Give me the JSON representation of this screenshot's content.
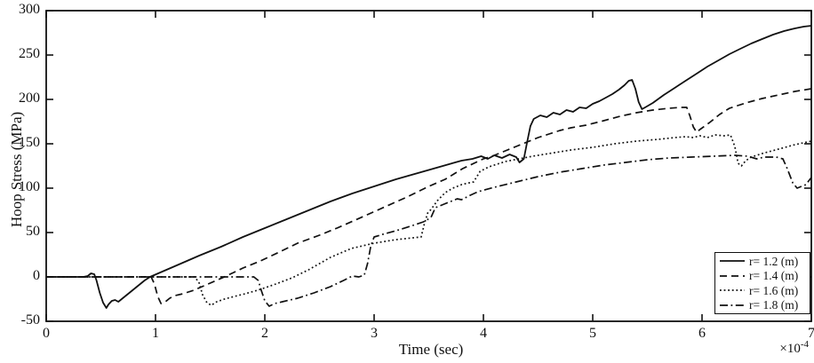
{
  "figure": {
    "background": "#ffffff",
    "line_color": "#111111"
  },
  "chart_data": {
    "type": "line",
    "title": "",
    "xlabel": "Time (sec)",
    "xlabel_multiplier": {
      "base": "×10",
      "exp": "-4"
    },
    "ylabel": "Hoop Stress (MPa)",
    "xlim": [
      0,
      7
    ],
    "ylim": [
      -50,
      300
    ],
    "xticks": [
      0,
      1,
      2,
      3,
      4,
      5,
      6,
      7
    ],
    "yticks": [
      -50,
      0,
      50,
      100,
      150,
      200,
      250,
      300
    ],
    "x_units_note": "time axis in units of 1e-4 seconds",
    "grid": false,
    "legend_position": "south-east-inside",
    "series": [
      {
        "key": "r12",
        "label": "r= 1.2 (m)",
        "style": "solid",
        "points": [
          [
            0,
            0
          ],
          [
            0.2,
            0
          ],
          [
            0.34,
            0
          ],
          [
            0.38,
            1
          ],
          [
            0.41,
            4
          ],
          [
            0.44,
            3
          ],
          [
            0.46,
            -4
          ],
          [
            0.49,
            -18
          ],
          [
            0.52,
            -29
          ],
          [
            0.55,
            -35
          ],
          [
            0.57,
            -31
          ],
          [
            0.6,
            -27
          ],
          [
            0.63,
            -26
          ],
          [
            0.66,
            -28
          ],
          [
            0.7,
            -24
          ],
          [
            0.76,
            -18
          ],
          [
            0.83,
            -11
          ],
          [
            0.9,
            -4
          ],
          [
            0.95,
            0
          ],
          [
            1.1,
            8
          ],
          [
            1.25,
            16
          ],
          [
            1.4,
            24
          ],
          [
            1.6,
            34
          ],
          [
            1.8,
            45
          ],
          [
            2.0,
            55
          ],
          [
            2.2,
            65
          ],
          [
            2.4,
            75
          ],
          [
            2.6,
            85
          ],
          [
            2.8,
            94
          ],
          [
            3.0,
            102
          ],
          [
            3.2,
            110
          ],
          [
            3.4,
            117
          ],
          [
            3.6,
            124
          ],
          [
            3.8,
            131
          ],
          [
            3.9,
            133
          ],
          [
            3.98,
            136
          ],
          [
            4.04,
            133
          ],
          [
            4.1,
            137
          ],
          [
            4.17,
            134
          ],
          [
            4.24,
            138
          ],
          [
            4.3,
            135
          ],
          [
            4.33,
            129
          ],
          [
            4.37,
            133
          ],
          [
            4.4,
            152
          ],
          [
            4.43,
            170
          ],
          [
            4.46,
            178
          ],
          [
            4.52,
            182
          ],
          [
            4.58,
            180
          ],
          [
            4.64,
            185
          ],
          [
            4.7,
            183
          ],
          [
            4.76,
            188
          ],
          [
            4.82,
            186
          ],
          [
            4.88,
            191
          ],
          [
            4.94,
            190
          ],
          [
            5.0,
            195
          ],
          [
            5.06,
            198
          ],
          [
            5.12,
            202
          ],
          [
            5.18,
            206
          ],
          [
            5.24,
            211
          ],
          [
            5.29,
            216
          ],
          [
            5.33,
            221
          ],
          [
            5.36,
            222
          ],
          [
            5.39,
            212
          ],
          [
            5.42,
            197
          ],
          [
            5.45,
            189
          ],
          [
            5.48,
            191
          ],
          [
            5.55,
            196
          ],
          [
            5.65,
            205
          ],
          [
            5.75,
            213
          ],
          [
            5.85,
            221
          ],
          [
            5.95,
            229
          ],
          [
            6.05,
            237
          ],
          [
            6.15,
            244
          ],
          [
            6.25,
            251
          ],
          [
            6.35,
            257
          ],
          [
            6.45,
            263
          ],
          [
            6.55,
            268
          ],
          [
            6.65,
            273
          ],
          [
            6.75,
            277
          ],
          [
            6.85,
            280
          ],
          [
            6.93,
            282
          ],
          [
            7.0,
            283
          ]
        ]
      },
      {
        "key": "r14",
        "label": "r= 1.4 (m)",
        "style": "dashed",
        "points": [
          [
            0,
            0
          ],
          [
            0.3,
            0
          ],
          [
            0.6,
            0
          ],
          [
            0.9,
            0
          ],
          [
            0.96,
            0
          ],
          [
            0.99,
            -8
          ],
          [
            1.02,
            -22
          ],
          [
            1.05,
            -30
          ],
          [
            1.09,
            -28
          ],
          [
            1.13,
            -24
          ],
          [
            1.18,
            -21
          ],
          [
            1.25,
            -19
          ],
          [
            1.35,
            -15
          ],
          [
            1.5,
            -7
          ],
          [
            1.63,
            0
          ],
          [
            1.8,
            10
          ],
          [
            1.96,
            18
          ],
          [
            2.15,
            29
          ],
          [
            2.3,
            38
          ],
          [
            2.5,
            47
          ],
          [
            2.66,
            55
          ],
          [
            2.9,
            68
          ],
          [
            3.1,
            79
          ],
          [
            3.3,
            90
          ],
          [
            3.5,
            102
          ],
          [
            3.65,
            110
          ],
          [
            3.81,
            122
          ],
          [
            4.0,
            133
          ],
          [
            4.1,
            137
          ],
          [
            4.2,
            142
          ],
          [
            4.3,
            147
          ],
          [
            4.4,
            152
          ],
          [
            4.5,
            157
          ],
          [
            4.6,
            161
          ],
          [
            4.7,
            165
          ],
          [
            4.8,
            168
          ],
          [
            4.94,
            171
          ],
          [
            5.1,
            176
          ],
          [
            5.25,
            181
          ],
          [
            5.4,
            185
          ],
          [
            5.55,
            188
          ],
          [
            5.7,
            190
          ],
          [
            5.8,
            191
          ],
          [
            5.86,
            191
          ],
          [
            5.89,
            181
          ],
          [
            5.92,
            169
          ],
          [
            5.95,
            163
          ],
          [
            5.98,
            166
          ],
          [
            6.07,
            174
          ],
          [
            6.16,
            183
          ],
          [
            6.25,
            190
          ],
          [
            6.4,
            196
          ],
          [
            6.55,
            201
          ],
          [
            6.7,
            205
          ],
          [
            6.85,
            209
          ],
          [
            7.0,
            212
          ]
        ]
      },
      {
        "key": "r16",
        "label": "r= 1.6 (m)",
        "style": "dotted",
        "points": [
          [
            0,
            0
          ],
          [
            0.4,
            0
          ],
          [
            0.8,
            0
          ],
          [
            1.2,
            0
          ],
          [
            1.36,
            0
          ],
          [
            1.4,
            -7
          ],
          [
            1.43,
            -20
          ],
          [
            1.47,
            -29
          ],
          [
            1.51,
            -32
          ],
          [
            1.56,
            -28
          ],
          [
            1.63,
            -25
          ],
          [
            1.72,
            -22
          ],
          [
            1.82,
            -19
          ],
          [
            1.96,
            -14
          ],
          [
            2.1,
            -8
          ],
          [
            2.25,
            -1
          ],
          [
            2.4,
            8
          ],
          [
            2.6,
            22
          ],
          [
            2.79,
            32
          ],
          [
            3.0,
            38
          ],
          [
            3.2,
            42
          ],
          [
            3.35,
            44
          ],
          [
            3.43,
            45
          ],
          [
            3.46,
            60
          ],
          [
            3.49,
            72
          ],
          [
            3.52,
            76
          ],
          [
            3.58,
            86
          ],
          [
            3.65,
            95
          ],
          [
            3.72,
            100
          ],
          [
            3.8,
            104
          ],
          [
            3.87,
            106
          ],
          [
            3.91,
            107
          ],
          [
            3.94,
            113
          ],
          [
            3.97,
            119
          ],
          [
            4.05,
            124
          ],
          [
            4.2,
            130
          ],
          [
            4.45,
            136
          ],
          [
            4.6,
            139
          ],
          [
            4.8,
            143
          ],
          [
            5.0,
            146
          ],
          [
            5.2,
            150
          ],
          [
            5.4,
            153
          ],
          [
            5.6,
            155
          ],
          [
            5.75,
            157
          ],
          [
            5.85,
            158
          ],
          [
            5.92,
            157
          ],
          [
            5.98,
            159
          ],
          [
            6.05,
            157
          ],
          [
            6.12,
            160
          ],
          [
            6.2,
            159
          ],
          [
            6.26,
            160
          ],
          [
            6.3,
            147
          ],
          [
            6.33,
            128
          ],
          [
            6.36,
            125
          ],
          [
            6.4,
            131
          ],
          [
            6.45,
            135
          ],
          [
            6.55,
            139
          ],
          [
            6.7,
            144
          ],
          [
            6.85,
            149
          ],
          [
            7.0,
            153
          ]
        ]
      },
      {
        "key": "r18",
        "label": "r= 1.8 (m)",
        "style": "dashdot",
        "points": [
          [
            0,
            0
          ],
          [
            0.5,
            0
          ],
          [
            1.0,
            0
          ],
          [
            1.5,
            0
          ],
          [
            1.9,
            0
          ],
          [
            1.94,
            -4
          ],
          [
            1.97,
            -16
          ],
          [
            2.0,
            -27
          ],
          [
            2.04,
            -33
          ],
          [
            2.09,
            -30
          ],
          [
            2.16,
            -28
          ],
          [
            2.3,
            -24
          ],
          [
            2.45,
            -18
          ],
          [
            2.6,
            -11
          ],
          [
            2.72,
            -4
          ],
          [
            2.8,
            1
          ],
          [
            2.86,
            0
          ],
          [
            2.91,
            2
          ],
          [
            2.94,
            15
          ],
          [
            2.97,
            35
          ],
          [
            3.0,
            45
          ],
          [
            3.08,
            48
          ],
          [
            3.2,
            52
          ],
          [
            3.33,
            57
          ],
          [
            3.45,
            62
          ],
          [
            3.48,
            64
          ],
          [
            3.52,
            67
          ],
          [
            3.56,
            78
          ],
          [
            3.64,
            82
          ],
          [
            3.72,
            86
          ],
          [
            3.76,
            88
          ],
          [
            3.8,
            87
          ],
          [
            3.88,
            92
          ],
          [
            3.95,
            96
          ],
          [
            4.1,
            101
          ],
          [
            4.3,
            107
          ],
          [
            4.5,
            113
          ],
          [
            4.7,
            118
          ],
          [
            4.9,
            122
          ],
          [
            5.1,
            126
          ],
          [
            5.3,
            129
          ],
          [
            5.5,
            132
          ],
          [
            5.7,
            134
          ],
          [
            5.9,
            135
          ],
          [
            6.1,
            136
          ],
          [
            6.3,
            137
          ],
          [
            6.42,
            136
          ],
          [
            6.5,
            133
          ],
          [
            6.57,
            135
          ],
          [
            6.68,
            135
          ],
          [
            6.74,
            133
          ],
          [
            6.78,
            122
          ],
          [
            6.83,
            106
          ],
          [
            6.87,
            100
          ],
          [
            6.91,
            102
          ],
          [
            6.95,
            104
          ],
          [
            7.0,
            112
          ]
        ]
      }
    ]
  }
}
